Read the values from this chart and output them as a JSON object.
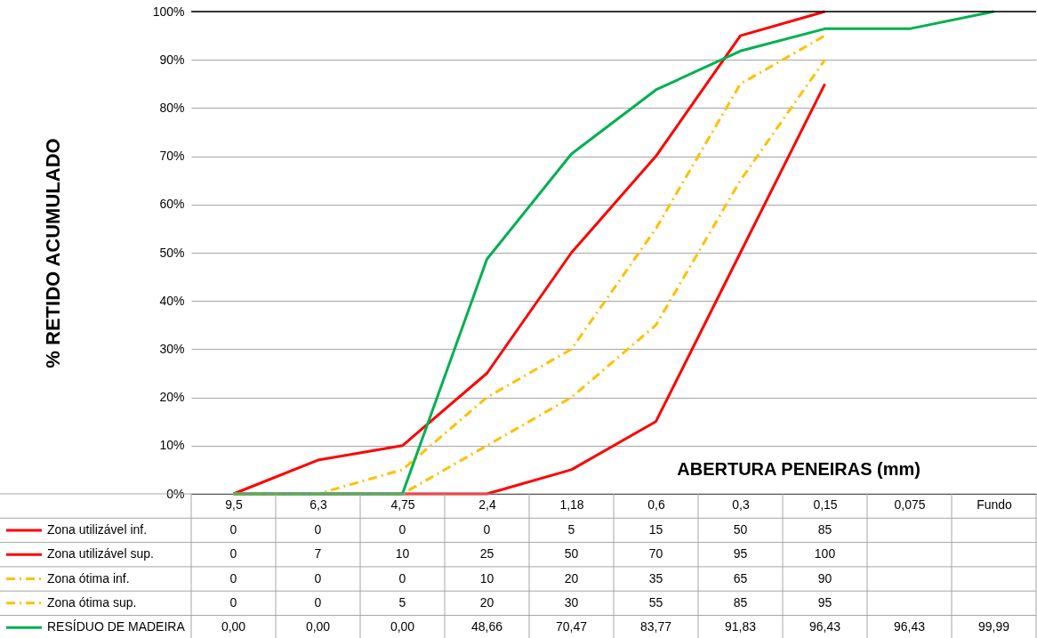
{
  "chart_data": {
    "type": "line",
    "xlabel": "ABERTURA PENEIRAS (mm)",
    "ylabel": "% RETIDO ACUMULADO",
    "categories": [
      "9,5",
      "6,3",
      "4,75",
      "2,4",
      "1,18",
      "0,6",
      "0,3",
      "0,15",
      "0,075",
      "Fundo"
    ],
    "ylim": [
      0,
      100
    ],
    "yticks": [
      {
        "value": 0,
        "label": "0%"
      },
      {
        "value": 10,
        "label": "10%"
      },
      {
        "value": 20,
        "label": "20%"
      },
      {
        "value": 30,
        "label": "30%"
      },
      {
        "value": 40,
        "label": "40%"
      },
      {
        "value": 50,
        "label": "50%"
      },
      {
        "value": 60,
        "label": "60%"
      },
      {
        "value": 70,
        "label": "70%"
      },
      {
        "value": 80,
        "label": "80%"
      },
      {
        "value": 90,
        "label": "90%"
      },
      {
        "value": 100,
        "label": "100%"
      }
    ],
    "grid": "y",
    "legend": "bottom",
    "series": [
      {
        "name": "Zona utilizável inf.",
        "color": "#ff0000",
        "line_style": "solid",
        "values": [
          0,
          0,
          0,
          0,
          5,
          15,
          50,
          85,
          null,
          null
        ],
        "value_labels": [
          "0",
          "0",
          "0",
          "0",
          "5",
          "15",
          "50",
          "85",
          null,
          null
        ]
      },
      {
        "name": "Zona utilizável sup.",
        "color": "#ff0000",
        "line_style": "solid",
        "values": [
          0,
          7,
          10,
          25,
          50,
          70,
          95,
          100,
          null,
          null
        ],
        "value_labels": [
          "0",
          "7",
          "10",
          "25",
          "50",
          "70",
          "95",
          "100",
          null,
          null
        ]
      },
      {
        "name": "Zona ótima inf.",
        "color": "#ffc000",
        "line_style": "dashed",
        "values": [
          0,
          0,
          0,
          10,
          20,
          35,
          65,
          90,
          null,
          null
        ],
        "value_labels": [
          "0",
          "0",
          "0",
          "10",
          "20",
          "35",
          "65",
          "90",
          null,
          null
        ]
      },
      {
        "name": "Zona ótima sup.",
        "color": "#ffc000",
        "line_style": "dashed",
        "values": [
          0,
          0,
          5,
          20,
          30,
          55,
          85,
          95,
          null,
          null
        ],
        "value_labels": [
          "0",
          "0",
          "5",
          "20",
          "30",
          "55",
          "85",
          "95",
          null,
          null
        ]
      },
      {
        "name": "RESÍDUO DE MADEIRA",
        "color": "#00b050",
        "line_style": "solid",
        "values": [
          0,
          0,
          0,
          48.66,
          70.47,
          83.77,
          91.83,
          96.43,
          96.43,
          99.99
        ],
        "value_labels": [
          "0,00",
          "0,00",
          "0,00",
          "48,66",
          "70,47",
          "83,77",
          "91,83",
          "96,43",
          "96,43",
          "99,99"
        ]
      }
    ]
  }
}
